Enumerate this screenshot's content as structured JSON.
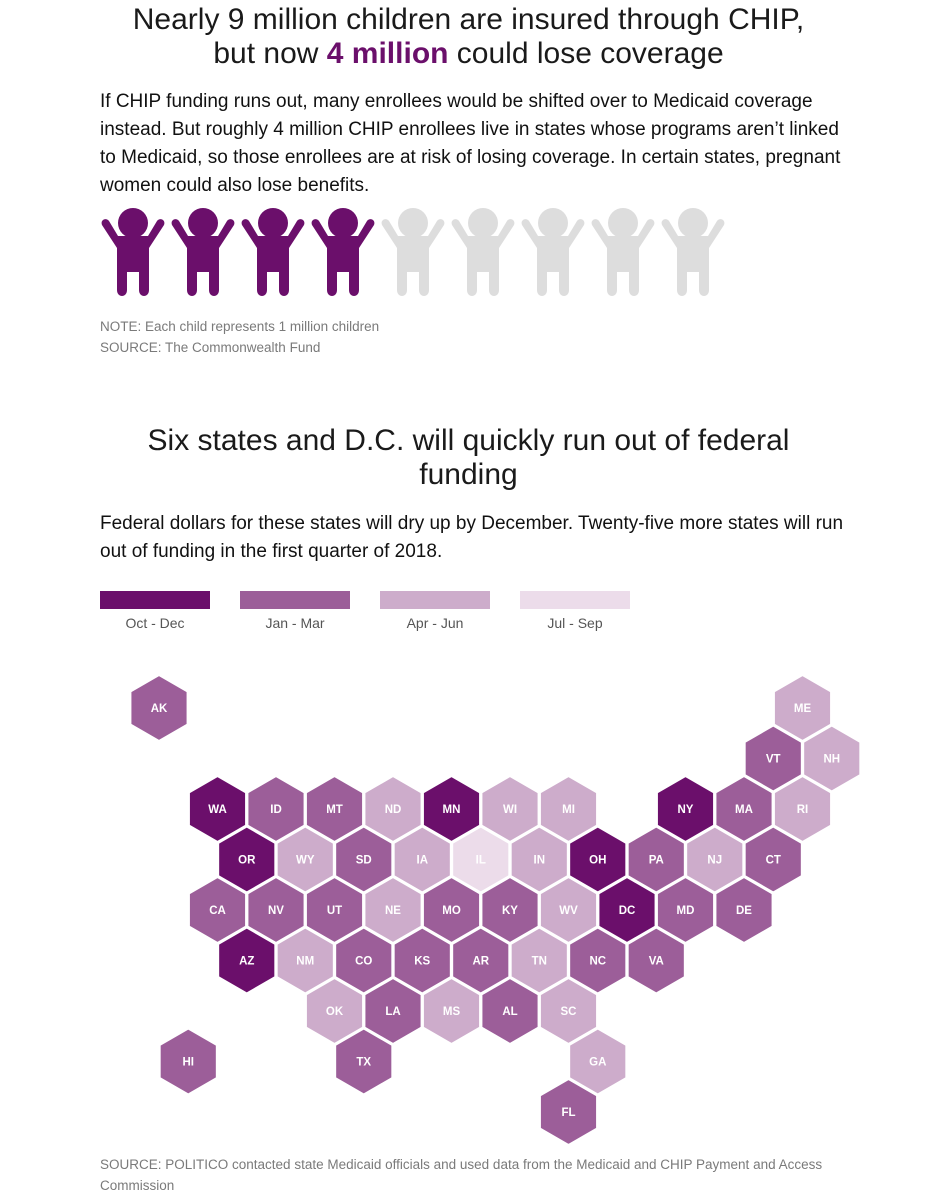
{
  "section1": {
    "title_line1": "Nearly 9 million children are insured through CHIP,",
    "title_line2_pre": "but now ",
    "title_line2_highlight": "4 million",
    "title_line2_post": " could lose coverage",
    "intro": "If CHIP funding runs out, many enrollees would be shifted over to Medicaid coverage instead. But roughly 4 million CHIP enrollees live in states whose programs aren’t linked to Medicaid, so those enrollees are at risk of losing coverage. In certain states, pregnant women could also lose benefits.",
    "note": "NOTE: Each child represents 1 million children",
    "source": "SOURCE: The Commonwealth Fund"
  },
  "section2": {
    "title_line1": "Six states and D.C. will quickly run out of federal",
    "title_line2": "funding",
    "intro": "Federal dollars for these states will dry up by December. Twenty-five more states will run out of funding in the first quarter of 2018.",
    "source": "SOURCE: POLITICO contacted state Medicaid officials and used data from the Medicaid and CHIP Payment and Access Commission"
  },
  "colors": {
    "accent": "#6b0f6b",
    "icon_inactive": "#dddddd",
    "hex_text_dark": "#ffffff",
    "hex_text_light": "#ffffff"
  },
  "chart_data": [
    {
      "type": "pictogram",
      "total": 9,
      "highlighted": 4,
      "unit_value_millions": 1,
      "icon": "child-icon"
    },
    {
      "type": "hex-tile-map",
      "legend": [
        {
          "label": "Oct - Dec",
          "color": "#6b0f6b"
        },
        {
          "label": "Jan - Mar",
          "color": "#9c5e99"
        },
        {
          "label": "Apr - Jun",
          "color": "#cdaccb"
        },
        {
          "label": "Jul - Sep",
          "color": "#ecdcea"
        }
      ],
      "states": [
        {
          "abbr": "AK",
          "row": 0,
          "col": 0,
          "category": "Jan - Mar"
        },
        {
          "abbr": "ME",
          "row": 0,
          "col": 11,
          "category": "Apr - Jun"
        },
        {
          "abbr": "VT",
          "row": 1,
          "col": 10,
          "category": "Jan - Mar"
        },
        {
          "abbr": "NH",
          "row": 1,
          "col": 11,
          "category": "Apr - Jun"
        },
        {
          "abbr": "WA",
          "row": 2,
          "col": 1,
          "category": "Oct - Dec"
        },
        {
          "abbr": "ID",
          "row": 2,
          "col": 2,
          "category": "Jan - Mar"
        },
        {
          "abbr": "MT",
          "row": 2,
          "col": 3,
          "category": "Jan - Mar"
        },
        {
          "abbr": "ND",
          "row": 2,
          "col": 4,
          "category": "Apr - Jun"
        },
        {
          "abbr": "MN",
          "row": 2,
          "col": 5,
          "category": "Oct - Dec"
        },
        {
          "abbr": "WI",
          "row": 2,
          "col": 6,
          "category": "Apr - Jun"
        },
        {
          "abbr": "MI",
          "row": 2,
          "col": 7,
          "category": "Apr - Jun"
        },
        {
          "abbr": "NY",
          "row": 2,
          "col": 9,
          "category": "Oct - Dec"
        },
        {
          "abbr": "MA",
          "row": 2,
          "col": 10,
          "category": "Jan - Mar"
        },
        {
          "abbr": "RI",
          "row": 2,
          "col": 11,
          "category": "Apr - Jun"
        },
        {
          "abbr": "OR",
          "row": 3,
          "col": 1,
          "category": "Oct - Dec"
        },
        {
          "abbr": "WY",
          "row": 3,
          "col": 2,
          "category": "Apr - Jun"
        },
        {
          "abbr": "SD",
          "row": 3,
          "col": 3,
          "category": "Jan - Mar"
        },
        {
          "abbr": "IA",
          "row": 3,
          "col": 4,
          "category": "Apr - Jun"
        },
        {
          "abbr": "IL",
          "row": 3,
          "col": 5,
          "category": "Jul - Sep"
        },
        {
          "abbr": "IN",
          "row": 3,
          "col": 6,
          "category": "Apr - Jun"
        },
        {
          "abbr": "OH",
          "row": 3,
          "col": 7,
          "category": "Oct - Dec"
        },
        {
          "abbr": "PA",
          "row": 3,
          "col": 8,
          "category": "Jan - Mar"
        },
        {
          "abbr": "NJ",
          "row": 3,
          "col": 9,
          "category": "Apr - Jun"
        },
        {
          "abbr": "CT",
          "row": 3,
          "col": 10,
          "category": "Jan - Mar"
        },
        {
          "abbr": "CA",
          "row": 4,
          "col": 1,
          "category": "Jan - Mar"
        },
        {
          "abbr": "NV",
          "row": 4,
          "col": 2,
          "category": "Jan - Mar"
        },
        {
          "abbr": "UT",
          "row": 4,
          "col": 3,
          "category": "Jan - Mar"
        },
        {
          "abbr": "NE",
          "row": 4,
          "col": 4,
          "category": "Apr - Jun"
        },
        {
          "abbr": "MO",
          "row": 4,
          "col": 5,
          "category": "Jan - Mar"
        },
        {
          "abbr": "KY",
          "row": 4,
          "col": 6,
          "category": "Jan - Mar"
        },
        {
          "abbr": "WV",
          "row": 4,
          "col": 7,
          "category": "Apr - Jun"
        },
        {
          "abbr": "DC",
          "row": 4,
          "col": 8,
          "category": "Oct - Dec"
        },
        {
          "abbr": "MD",
          "row": 4,
          "col": 9,
          "category": "Jan - Mar"
        },
        {
          "abbr": "DE",
          "row": 4,
          "col": 10,
          "category": "Jan - Mar"
        },
        {
          "abbr": "AZ",
          "row": 5,
          "col": 1,
          "category": "Oct - Dec"
        },
        {
          "abbr": "NM",
          "row": 5,
          "col": 2,
          "category": "Apr - Jun"
        },
        {
          "abbr": "CO",
          "row": 5,
          "col": 3,
          "category": "Jan - Mar"
        },
        {
          "abbr": "KS",
          "row": 5,
          "col": 4,
          "category": "Jan - Mar"
        },
        {
          "abbr": "AR",
          "row": 5,
          "col": 5,
          "category": "Jan - Mar"
        },
        {
          "abbr": "TN",
          "row": 5,
          "col": 6,
          "category": "Apr - Jun"
        },
        {
          "abbr": "NC",
          "row": 5,
          "col": 7,
          "category": "Jan - Mar"
        },
        {
          "abbr": "VA",
          "row": 5,
          "col": 8,
          "category": "Jan - Mar"
        },
        {
          "abbr": "OK",
          "row": 6,
          "col": 3,
          "category": "Apr - Jun"
        },
        {
          "abbr": "LA",
          "row": 6,
          "col": 4,
          "category": "Jan - Mar"
        },
        {
          "abbr": "MS",
          "row": 6,
          "col": 5,
          "category": "Apr - Jun"
        },
        {
          "abbr": "AL",
          "row": 6,
          "col": 6,
          "category": "Jan - Mar"
        },
        {
          "abbr": "SC",
          "row": 6,
          "col": 7,
          "category": "Apr - Jun"
        },
        {
          "abbr": "HI",
          "row": 7,
          "col": 0,
          "category": "Jan - Mar"
        },
        {
          "abbr": "TX",
          "row": 7,
          "col": 3,
          "category": "Jan - Mar"
        },
        {
          "abbr": "GA",
          "row": 7,
          "col": 7,
          "category": "Apr - Jun"
        },
        {
          "abbr": "FL",
          "row": 8,
          "col": 7,
          "category": "Jan - Mar"
        }
      ]
    }
  ]
}
